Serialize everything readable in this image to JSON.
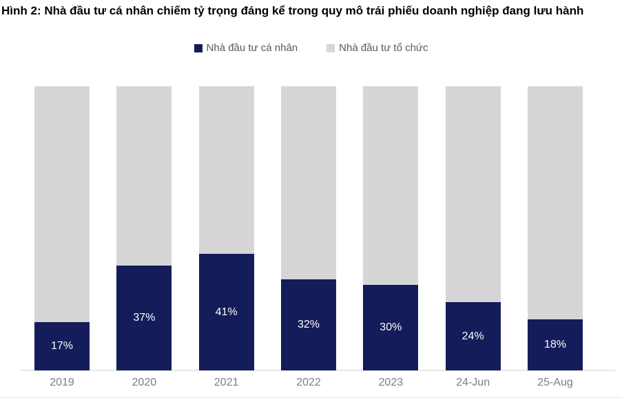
{
  "title": "Hình 2: Nhà đầu tư cá nhân chiếm tỷ trọng đáng kể trong quy mô trái phiếu doanh nghiệp đang lưu hành",
  "legend": [
    {
      "label": "Nhà đầu tư cá nhân",
      "color": "#151c5a"
    },
    {
      "label": "Nhà đầu tư tổ chức",
      "color": "#d6d6d6"
    }
  ],
  "chart_data": {
    "type": "bar",
    "stacked": true,
    "title": "Hình 2: Nhà đầu tư cá nhân chiếm tỷ trọng đáng kể trong quy mô trái phiếu doanh nghiệp đang lưu hành",
    "categories": [
      "2019",
      "2020",
      "2021",
      "2022",
      "2023",
      "24-Jun",
      "25-Aug"
    ],
    "series": [
      {
        "name": "Nhà đầu tư cá nhân",
        "color": "#151c5a",
        "values": [
          17,
          37,
          41,
          32,
          30,
          24,
          18
        ],
        "labels": [
          "17%",
          "37%",
          "41%",
          "32%",
          "30%",
          "24%",
          "18%"
        ]
      },
      {
        "name": "Nhà đầu tư tổ chức",
        "color": "#d6d6d6",
        "values": [
          83,
          63,
          59,
          68,
          70,
          76,
          82
        ]
      }
    ],
    "ylim": [
      0,
      100
    ],
    "grid": false,
    "y_axis_visible": false,
    "legend_position": "top-center",
    "value_label_color": "#ffffff",
    "tick_label_color": "#7d7d7d",
    "axis_line_color": "#e7e7e7"
  }
}
